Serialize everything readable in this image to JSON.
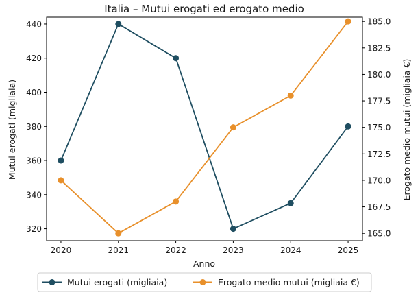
{
  "colors": {
    "series1": "#1f4e61",
    "series2": "#e8902b",
    "axis": "#000000",
    "legend_border": "#cccccc"
  },
  "chart_data": {
    "type": "line",
    "title": "Italia – Mutui erogati ed erogato medio",
    "xlabel": "Anno",
    "ylabel_left": "Mutui erogati (migliaia)",
    "ylabel_right": "Erogato medio mutui (migliaia €)",
    "x": [
      "2020",
      "2021",
      "2022",
      "2023",
      "2024",
      "2025"
    ],
    "x_values": [
      2020,
      2021,
      2022,
      2023,
      2024,
      2025
    ],
    "xlim": [
      2019.75,
      2025.25
    ],
    "ylim_left": [
      313,
      444
    ],
    "ylim_right": [
      164.3,
      185.4
    ],
    "yticks_left": [
      "320",
      "340",
      "360",
      "380",
      "400",
      "420",
      "440"
    ],
    "yticks_left_values": [
      320,
      340,
      360,
      380,
      400,
      420,
      440
    ],
    "yticks_right": [
      "165.0",
      "167.5",
      "170.0",
      "172.5",
      "175.0",
      "177.5",
      "180.0",
      "182.5",
      "185.0"
    ],
    "yticks_right_values": [
      165.0,
      167.5,
      170.0,
      172.5,
      175.0,
      177.5,
      180.0,
      182.5,
      185.0
    ],
    "grid": false,
    "legend_placement": "bottom-center",
    "series": [
      {
        "name": "Mutui erogati (migliaia)",
        "axis": "left",
        "values": [
          360,
          440,
          420,
          320,
          335,
          380
        ]
      },
      {
        "name": "Erogato medio mutui (migliaia €)",
        "axis": "right",
        "values": [
          170.0,
          165.0,
          168.0,
          175.0,
          178.0,
          185.0
        ]
      }
    ]
  }
}
